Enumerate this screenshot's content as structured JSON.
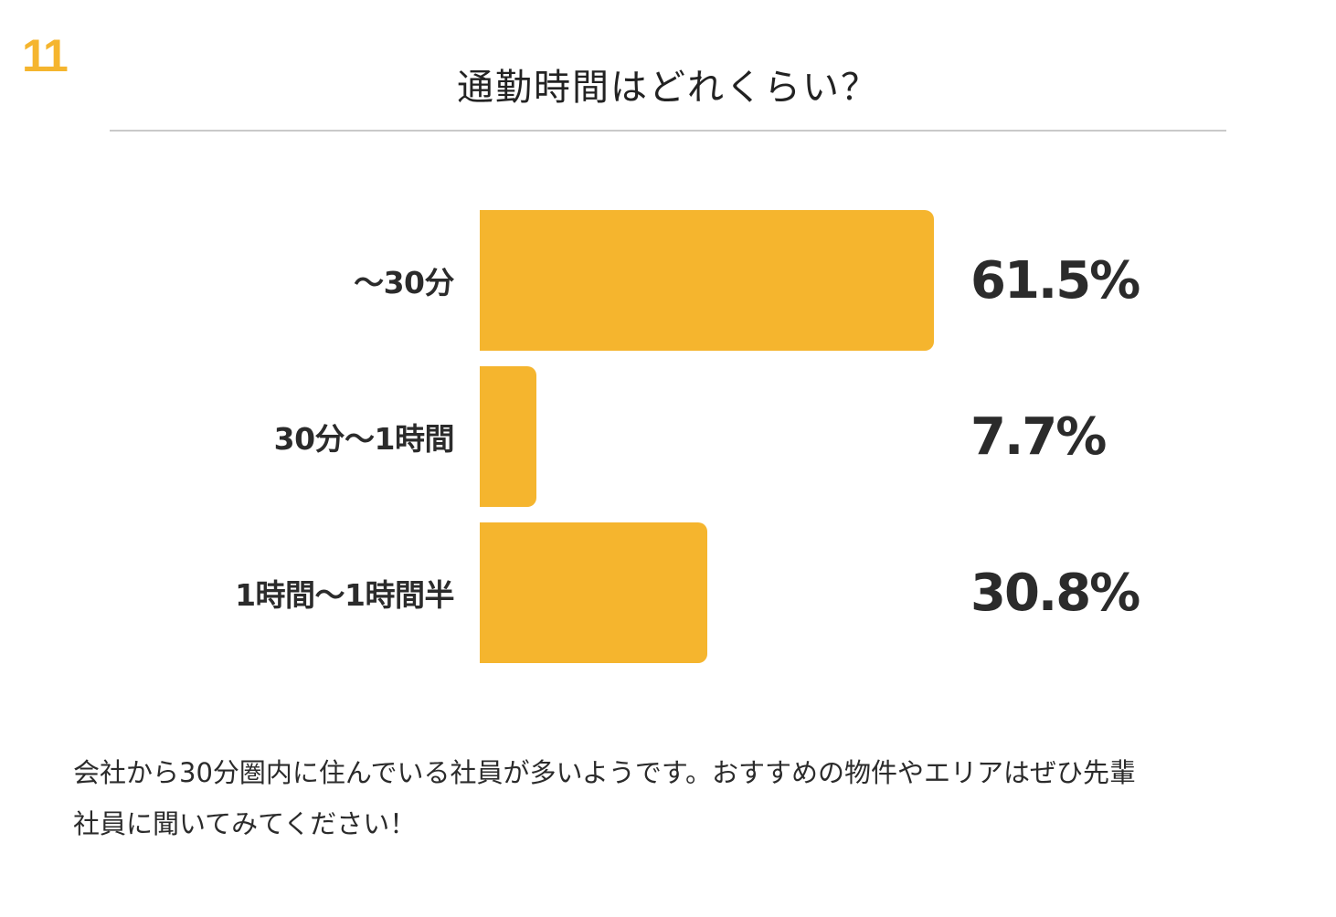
{
  "page_number": "11",
  "title": "通勤時間はどれくらい？",
  "colors": {
    "accent": "#f5b52e",
    "text": "#2b2b2b",
    "divider": "#c9c9c9"
  },
  "rows": [
    {
      "label": "～30分",
      "value_label": "61.5%"
    },
    {
      "label": "30分～1時間",
      "value_label": "7.7%"
    },
    {
      "label": "1時間～1時間半",
      "value_label": "30.8%"
    }
  ],
  "comment": {
    "line1": "会社から30分圏内に住んでいる社員が多いようです。おすすめの物件やエリアはぜひ先輩",
    "line2": "社員に聞いてみてください！"
  },
  "chart_data": {
    "type": "bar",
    "orientation": "horizontal",
    "title": "通勤時間はどれくらい？",
    "categories": [
      "～30分",
      "30分～1時間",
      "1時間～1時間半"
    ],
    "values": [
      61.5,
      7.7,
      30.8
    ],
    "unit": "%",
    "data_labels": [
      "61.5%",
      "7.7%",
      "30.8%"
    ],
    "xlabel": "",
    "ylabel": "",
    "grid": false,
    "legend": null,
    "bar_color": "#f5b52e"
  }
}
